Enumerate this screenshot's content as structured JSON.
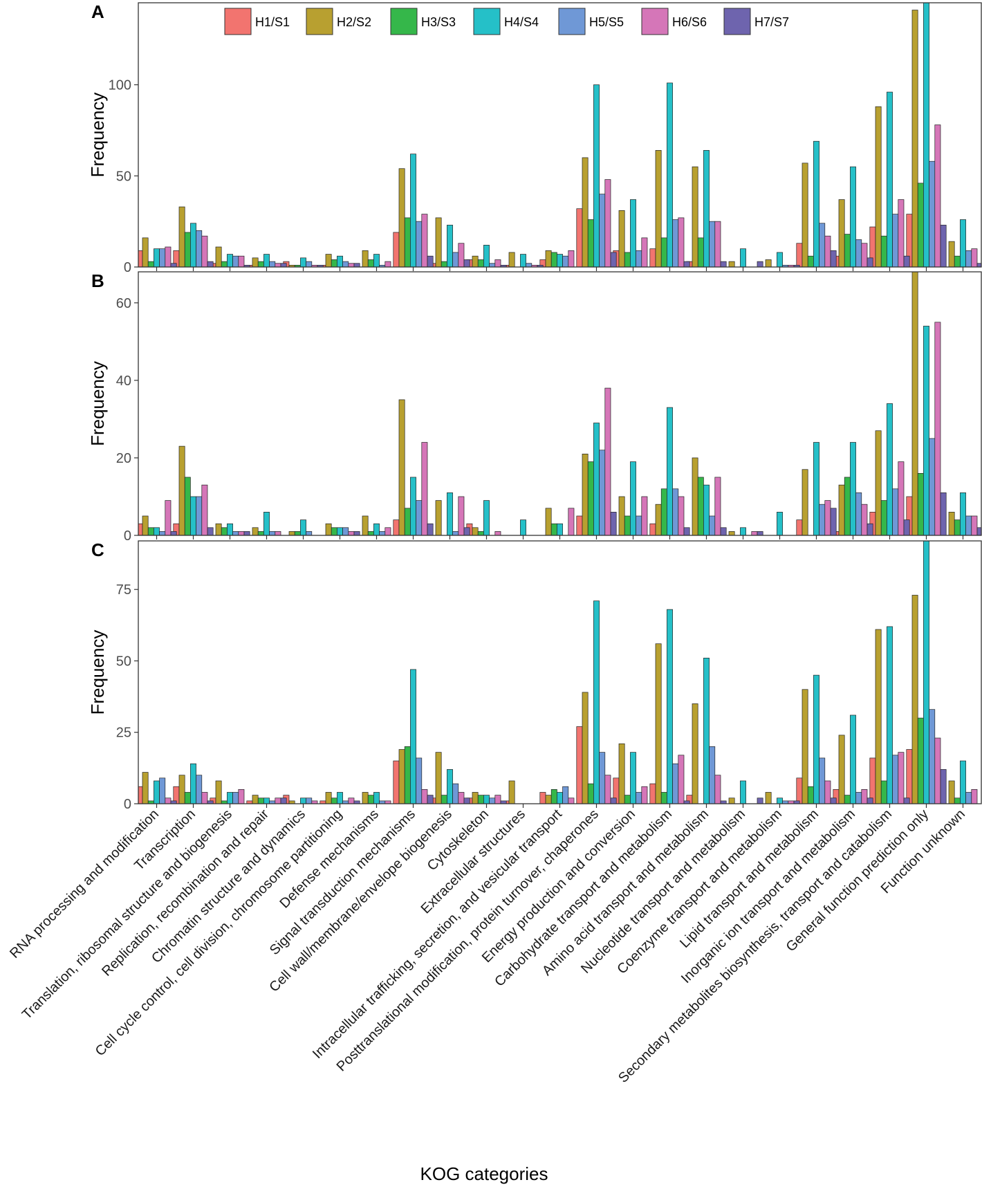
{
  "chart_data": {
    "type": "bar",
    "xlabel": "KOG categories",
    "ylabel": "Frequency",
    "legend": {
      "position": "top-inside",
      "entries": [
        "H1/S1",
        "H2/S2",
        "H3/S3",
        "H4/S4",
        "H5/S5",
        "H6/S6",
        "H7/S7"
      ]
    },
    "series_colors": [
      "#F8766D",
      "#C49A00",
      "#53B400",
      "#00C094",
      "#00B6EB",
      "#A58AFF",
      "#FB61D7"
    ],
    "display_colors": [
      "#F2746F",
      "#B8A030",
      "#35B74A",
      "#25C0C8",
      "#6F98D6",
      "#D576B8",
      "#6E64AE"
    ],
    "categories": [
      "RNA processing and modification",
      "Transcription",
      "Translation, ribosomal structure and biogenesis",
      "Replication, recombination and repair",
      "Chromatin structure and dynamics",
      "Cell cycle control, cell division, chromosome partitioning",
      "Defense mechanisms",
      "Signal transduction mechanisms",
      "Cell wall/membrane/envelope biogenesis",
      "Cytoskeleton",
      "Extracellular structures",
      "Intracellular trafficking, secretion, and vesicular transport",
      "Posttranslational modification, protein turnover, chaperones",
      "Energy production and conversion",
      "Carbohydrate transport and metabolism",
      "Amino acid transport and metabolism",
      "Nucleotide transport and metabolism",
      "Coenzyme transport and metabolism",
      "Lipid transport and metabolism",
      "Inorganic ion transport and metabolism",
      "Secondary metabolites biosynthesis, transport and catabolism",
      "General function prediction only",
      "Function unknown"
    ],
    "panels": [
      {
        "label": "A",
        "ylim": [
          0,
          145
        ],
        "yticks": [
          0,
          50,
          100
        ],
        "series": [
          {
            "name": "H1/S1",
            "values": [
              9,
              9,
              2,
              1,
              3,
              1,
              0,
              19,
              2,
              4,
              1,
              4,
              32,
              9,
              10,
              3,
              0,
              0,
              13,
              6,
              22,
              29,
              0
            ]
          },
          {
            "name": "H2/S2",
            "values": [
              16,
              33,
              11,
              5,
              1,
              7,
              9,
              54,
              27,
              6,
              8,
              9,
              60,
              31,
              64,
              55,
              3,
              4,
              57,
              37,
              88,
              141,
              14
            ]
          },
          {
            "name": "H3/S3",
            "values": [
              3,
              19,
              3,
              3,
              1,
              4,
              4,
              27,
              3,
              4,
              0,
              8,
              26,
              8,
              16,
              16,
              0,
              0,
              6,
              18,
              17,
              46,
              6
            ]
          },
          {
            "name": "H4/S4",
            "values": [
              10,
              24,
              7,
              7,
              5,
              6,
              7,
              62,
              23,
              12,
              7,
              7,
              100,
              37,
              101,
              64,
              10,
              8,
              69,
              55,
              96,
              145,
              26
            ]
          },
          {
            "name": "H5/S5",
            "values": [
              10,
              20,
              6,
              3,
              3,
              3,
              1,
              25,
              8,
              2,
              2,
              6,
              40,
              9,
              26,
              25,
              0,
              1,
              24,
              15,
              29,
              58,
              9
            ]
          },
          {
            "name": "H6/S6",
            "values": [
              11,
              17,
              6,
              2,
              1,
              2,
              3,
              29,
              13,
              4,
              1,
              9,
              48,
              16,
              27,
              25,
              0,
              1,
              17,
              13,
              37,
              78,
              10
            ]
          },
          {
            "name": "H7/S7",
            "values": [
              2,
              3,
              1,
              2,
              1,
              2,
              0,
              6,
              4,
              1,
              1,
              0,
              8,
              0,
              3,
              3,
              3,
              1,
              9,
              5,
              6,
              23,
              2
            ]
          }
        ]
      },
      {
        "label": "B",
        "ylim": [
          0,
          68
        ],
        "yticks": [
          0,
          20,
          40,
          60
        ],
        "series": [
          {
            "name": "H1/S1",
            "values": [
              3,
              3,
              0,
              0,
              0,
              0,
              0,
              4,
              0,
              3,
              0,
              0,
              5,
              0,
              3,
              0,
              0,
              0,
              4,
              1,
              6,
              10,
              0
            ]
          },
          {
            "name": "H2/S2",
            "values": [
              5,
              23,
              3,
              2,
              1,
              3,
              5,
              35,
              9,
              2,
              0,
              7,
              21,
              10,
              8,
              20,
              1,
              0,
              17,
              13,
              27,
              68,
              6
            ]
          },
          {
            "name": "H3/S3",
            "values": [
              2,
              15,
              2,
              1,
              1,
              2,
              1,
              7,
              0,
              1,
              0,
              3,
              19,
              5,
              12,
              15,
              0,
              0,
              0,
              15,
              9,
              16,
              4
            ]
          },
          {
            "name": "H4/S4",
            "values": [
              2,
              10,
              3,
              6,
              4,
              2,
              3,
              15,
              11,
              9,
              4,
              3,
              29,
              19,
              33,
              13,
              2,
              6,
              24,
              24,
              34,
              54,
              11
            ]
          },
          {
            "name": "H5/S5",
            "values": [
              1,
              10,
              1,
              1,
              1,
              2,
              1,
              9,
              1,
              0,
              0,
              0,
              22,
              5,
              12,
              5,
              0,
              0,
              8,
              11,
              12,
              25,
              5
            ]
          },
          {
            "name": "H6/S6",
            "values": [
              9,
              13,
              1,
              1,
              0,
              1,
              2,
              24,
              10,
              1,
              0,
              7,
              38,
              10,
              10,
              15,
              1,
              0,
              9,
              8,
              19,
              55,
              5
            ]
          },
          {
            "name": "H7/S7",
            "values": [
              1,
              2,
              1,
              0,
              0,
              1,
              0,
              3,
              2,
              0,
              0,
              0,
              6,
              0,
              2,
              2,
              1,
              0,
              7,
              3,
              4,
              11,
              2
            ]
          }
        ]
      },
      {
        "label": "C",
        "ylim": [
          0,
          92
        ],
        "yticks": [
          0,
          25,
          50,
          75
        ],
        "series": [
          {
            "name": "H1/S1",
            "values": [
              6,
              6,
              2,
              1,
              3,
              1,
              0,
              15,
              2,
              2,
              1,
              4,
              27,
              9,
              7,
              3,
              0,
              0,
              9,
              5,
              16,
              19,
              0
            ]
          },
          {
            "name": "H2/S2",
            "values": [
              11,
              10,
              8,
              3,
              1,
              4,
              4,
              19,
              18,
              4,
              8,
              3,
              39,
              21,
              56,
              35,
              2,
              4,
              40,
              24,
              61,
              73,
              8
            ]
          },
          {
            "name": "H3/S3",
            "values": [
              1,
              4,
              1,
              2,
              0,
              2,
              3,
              20,
              3,
              3,
              0,
              5,
              7,
              3,
              4,
              0,
              0,
              0,
              6,
              3,
              8,
              30,
              2
            ]
          },
          {
            "name": "H4/S4",
            "values": [
              8,
              14,
              4,
              2,
              2,
              4,
              4,
              47,
              12,
              3,
              0,
              4,
              71,
              18,
              68,
              51,
              8,
              2,
              45,
              31,
              62,
              92,
              15
            ]
          },
          {
            "name": "H5/S5",
            "values": [
              9,
              10,
              4,
              1,
              2,
              1,
              1,
              16,
              7,
              2,
              0,
              6,
              18,
              4,
              14,
              20,
              0,
              1,
              16,
              4,
              17,
              33,
              4
            ]
          },
          {
            "name": "H6/S6",
            "values": [
              2,
              4,
              5,
              2,
              1,
              2,
              1,
              5,
              4,
              3,
              0,
              2,
              10,
              6,
              17,
              10,
              0,
              1,
              8,
              5,
              18,
              23,
              5
            ]
          },
          {
            "name": "H7/S7",
            "values": [
              1,
              1,
              0,
              2,
              0,
              1,
              0,
              3,
              2,
              1,
              0,
              0,
              2,
              0,
              1,
              1,
              2,
              1,
              2,
              2,
              2,
              12,
              0
            ]
          }
        ]
      }
    ]
  }
}
